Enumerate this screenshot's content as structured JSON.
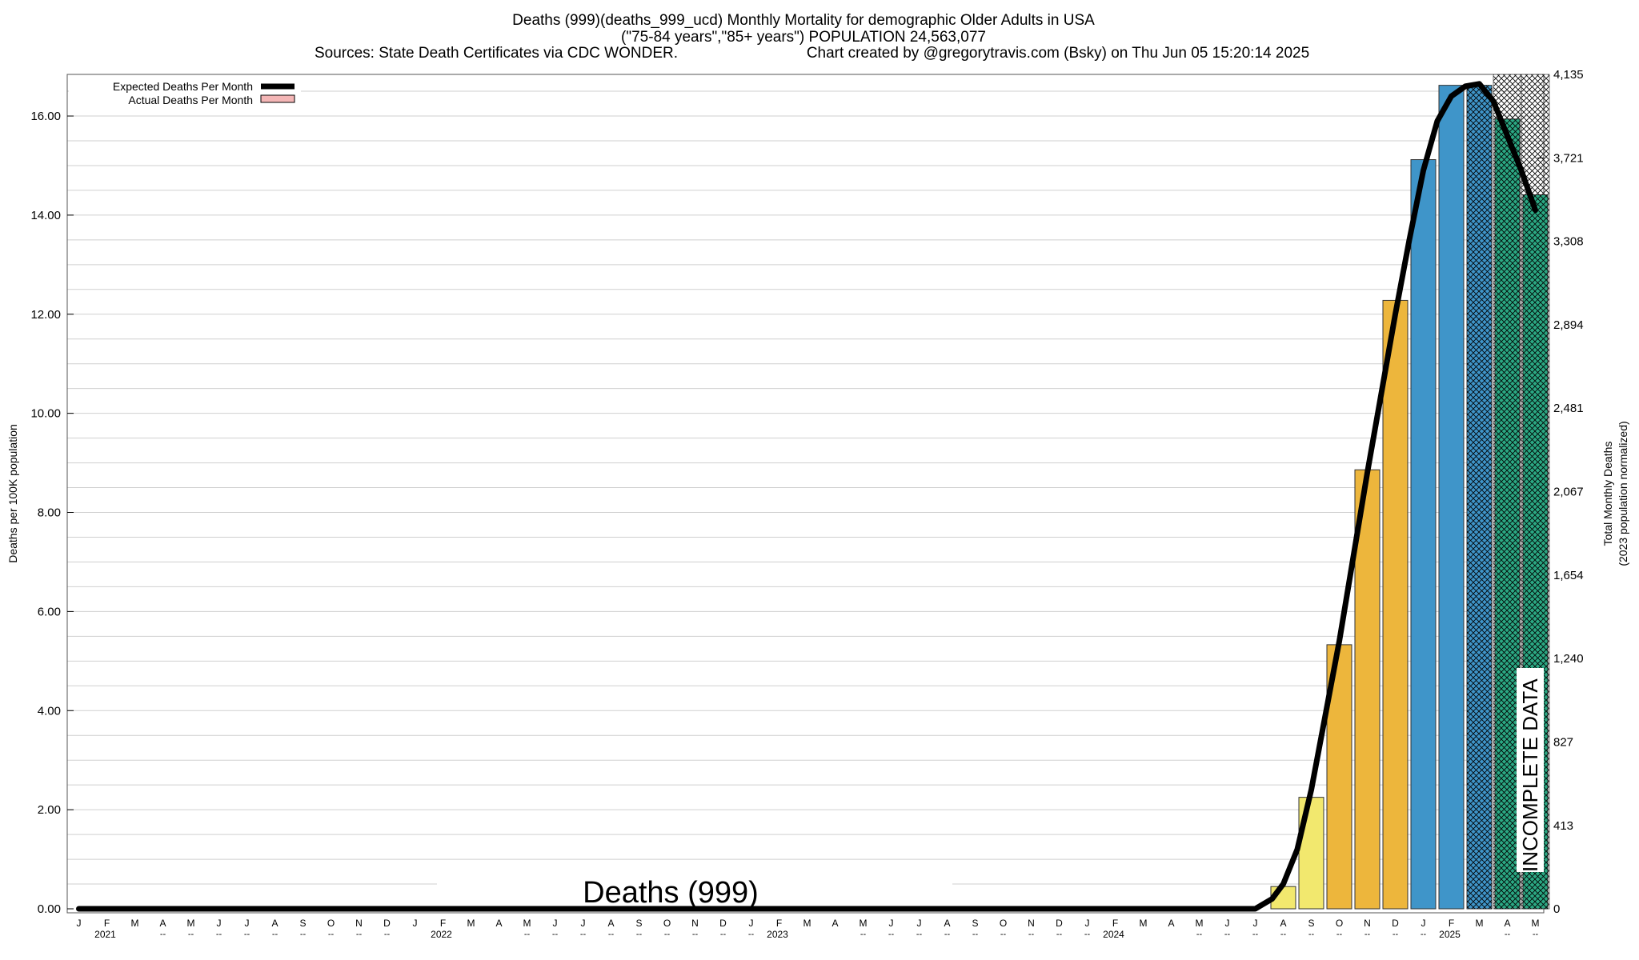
{
  "chart_data": {
    "type": "bar",
    "title": "Deaths (999)(deaths_999_ucd) Monthly Mortality for demographic Older Adults in USA",
    "subtitle": "(\"75-84 years\",\"85+ years\") POPULATION 24,563,077",
    "source_line": "Sources: State Death Certificates via CDC WONDER.",
    "credit_line": "Chart created by @gregorytravis.com (Bsky) on Thu Jun 05 15:20:14 2025",
    "ylabel_left": "Deaths per 100K population",
    "ylabel_right_1": "Total Monthly Deaths",
    "ylabel_right_2": "(2023 population normalized)",
    "ylim": [
      0,
      16.84
    ],
    "left_ticks": [
      "0.00",
      "2.00",
      "4.00",
      "6.00",
      "8.00",
      "10.00",
      "12.00",
      "14.00",
      "16.00"
    ],
    "left_tick_values": [
      0,
      2,
      4,
      6,
      8,
      10,
      12,
      14,
      16
    ],
    "right_ticks": [
      "0",
      "413",
      "827",
      "1,240",
      "1,654",
      "2,067",
      "2,481",
      "2,894",
      "3,308",
      "3,721",
      "4,135"
    ],
    "right_tick_values": [
      0,
      413,
      827,
      1240,
      1654,
      2067,
      2481,
      2894,
      3308,
      3721,
      4135
    ],
    "right_max": 4135,
    "grid": true,
    "legend_position": "top-left",
    "legend": [
      {
        "label": "Expected Deaths Per Month",
        "kind": "line",
        "color": "#000000"
      },
      {
        "label": "Actual Deaths Per Month",
        "kind": "box",
        "color": "#f4b6b6"
      }
    ],
    "month_labels": [
      "J",
      "F",
      "M",
      "A",
      "M",
      "J",
      "J",
      "A",
      "S",
      "O",
      "N",
      "D",
      "J",
      "F",
      "M",
      "A",
      "M",
      "J",
      "J",
      "A",
      "S",
      "O",
      "N",
      "D",
      "J",
      "F",
      "M",
      "A",
      "M",
      "J",
      "J",
      "A",
      "S",
      "O",
      "N",
      "D",
      "J",
      "F",
      "M",
      "A",
      "M",
      "J",
      "J",
      "A",
      "S",
      "O",
      "N",
      "D",
      "J",
      "F",
      "M",
      "A",
      "M"
    ],
    "dash_label": "--",
    "dash_months": [
      3,
      4,
      5,
      6,
      7,
      8,
      9,
      10,
      11,
      16,
      17,
      18,
      19,
      20,
      21,
      22,
      23,
      24,
      28,
      29,
      30,
      31,
      32,
      33,
      34,
      35,
      36,
      40,
      41,
      42,
      43,
      44,
      45,
      46,
      47,
      48,
      51,
      52
    ],
    "years": [
      {
        "label": "2021",
        "index": 1
      },
      {
        "label": "2022",
        "index": 13
      },
      {
        "label": "2023",
        "index": 25
      },
      {
        "label": "2024",
        "index": 37
      },
      {
        "label": "2025",
        "index": 49
      }
    ],
    "bars": [
      {
        "index": 43,
        "value": 0.45,
        "color": "#f2e86e",
        "hatched": false
      },
      {
        "index": 44,
        "value": 2.25,
        "color": "#f2e86e",
        "hatched": false
      },
      {
        "index": 45,
        "value": 5.33,
        "color": "#edb63c",
        "hatched": false
      },
      {
        "index": 46,
        "value": 8.86,
        "color": "#edb63c",
        "hatched": false
      },
      {
        "index": 47,
        "value": 12.28,
        "color": "#edb63c",
        "hatched": false
      },
      {
        "index": 48,
        "value": 15.12,
        "color": "#3f95c9",
        "hatched": false
      },
      {
        "index": 49,
        "value": 16.62,
        "color": "#3f95c9",
        "hatched": false
      },
      {
        "index": 50,
        "value": 16.62,
        "color": "#3f95c9",
        "hatched": true
      },
      {
        "index": 51,
        "value": 15.94,
        "color": "#2ba883",
        "hatched": true
      },
      {
        "index": 52,
        "value": 14.41,
        "color": "#2ba883",
        "hatched": true
      }
    ],
    "incomplete_bands": [
      {
        "index": 51,
        "top": 16.84
      },
      {
        "index": 52,
        "top": 16.84
      }
    ],
    "expected_line": [
      {
        "x": 0,
        "y": 0.0
      },
      {
        "x": 42,
        "y": 0.0
      },
      {
        "x": 42.6,
        "y": 0.2
      },
      {
        "x": 43,
        "y": 0.5
      },
      {
        "x": 43.5,
        "y": 1.2
      },
      {
        "x": 44,
        "y": 2.4
      },
      {
        "x": 44.5,
        "y": 3.9
      },
      {
        "x": 45,
        "y": 5.4
      },
      {
        "x": 45.5,
        "y": 7.1
      },
      {
        "x": 46,
        "y": 8.8
      },
      {
        "x": 46.5,
        "y": 10.4
      },
      {
        "x": 47,
        "y": 12.0
      },
      {
        "x": 47.5,
        "y": 13.5
      },
      {
        "x": 48,
        "y": 14.9
      },
      {
        "x": 48.5,
        "y": 15.9
      },
      {
        "x": 49,
        "y": 16.4
      },
      {
        "x": 49.5,
        "y": 16.6
      },
      {
        "x": 50,
        "y": 16.65
      },
      {
        "x": 50.5,
        "y": 16.3
      },
      {
        "x": 51,
        "y": 15.6
      },
      {
        "x": 51.5,
        "y": 14.9
      },
      {
        "x": 52,
        "y": 14.1
      }
    ],
    "watermark": "Deaths (999)",
    "incomplete_label": "INCOMPLETE DATA"
  }
}
